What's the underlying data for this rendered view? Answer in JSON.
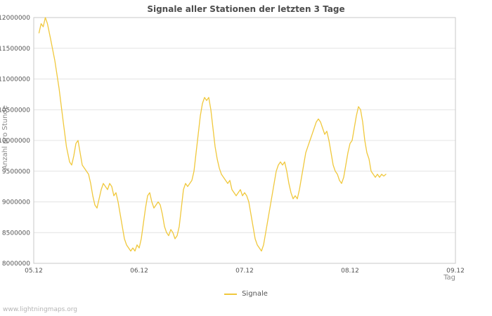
{
  "watermark": "www.lightningmaps.org",
  "chart_data": {
    "type": "line",
    "title": "Signale aller Stationen der letzten 3 Tage",
    "xlabel": "Tag",
    "ylabel": "Anzahl pro Stunde",
    "xlim": [
      5.0,
      9.0
    ],
    "ylim": [
      8.0,
      12.0
    ],
    "y_unit": "millions",
    "grid": "horizontal",
    "legend_position": "bottom-center",
    "colors": {
      "grid": "#e4e4e4",
      "border": "#c9c9c9"
    },
    "xticks": [
      {
        "value": 5.0,
        "label": "05.12"
      },
      {
        "value": 6.0,
        "label": "06.12"
      },
      {
        "value": 7.0,
        "label": "07.12"
      },
      {
        "value": 8.0,
        "label": "08.12"
      },
      {
        "value": 9.0,
        "label": "09.12"
      }
    ],
    "yticks": [
      {
        "value": 8.0,
        "label": "8000000"
      },
      {
        "value": 8.5,
        "label": "8500000"
      },
      {
        "value": 9.0,
        "label": "9000000"
      },
      {
        "value": 9.5,
        "label": "9500000"
      },
      {
        "value": 10.0,
        "label": "10000000"
      },
      {
        "value": 10.5,
        "label": "10500000"
      },
      {
        "value": 11.0,
        "label": "11000000"
      },
      {
        "value": 11.5,
        "label": "11500000"
      },
      {
        "value": 12.0,
        "label": "12000000"
      }
    ],
    "series": [
      {
        "name": "Signale",
        "color": "#f0c83c",
        "points": [
          [
            5.05,
            11.75
          ],
          [
            5.07,
            11.9
          ],
          [
            5.09,
            11.85
          ],
          [
            5.11,
            12.0
          ],
          [
            5.13,
            11.9
          ],
          [
            5.16,
            11.65
          ],
          [
            5.2,
            11.3
          ],
          [
            5.24,
            10.85
          ],
          [
            5.28,
            10.3
          ],
          [
            5.31,
            9.9
          ],
          [
            5.34,
            9.65
          ],
          [
            5.36,
            9.6
          ],
          [
            5.38,
            9.75
          ],
          [
            5.4,
            9.95
          ],
          [
            5.42,
            10.0
          ],
          [
            5.44,
            9.8
          ],
          [
            5.46,
            9.6
          ],
          [
            5.48,
            9.55
          ],
          [
            5.5,
            9.5
          ],
          [
            5.52,
            9.45
          ],
          [
            5.54,
            9.3
          ],
          [
            5.56,
            9.1
          ],
          [
            5.58,
            8.95
          ],
          [
            5.6,
            8.9
          ],
          [
            5.62,
            9.05
          ],
          [
            5.64,
            9.2
          ],
          [
            5.66,
            9.3
          ],
          [
            5.68,
            9.25
          ],
          [
            5.7,
            9.2
          ],
          [
            5.72,
            9.3
          ],
          [
            5.74,
            9.25
          ],
          [
            5.76,
            9.1
          ],
          [
            5.78,
            9.15
          ],
          [
            5.8,
            9.0
          ],
          [
            5.82,
            8.8
          ],
          [
            5.84,
            8.6
          ],
          [
            5.86,
            8.4
          ],
          [
            5.88,
            8.3
          ],
          [
            5.9,
            8.25
          ],
          [
            5.92,
            8.2
          ],
          [
            5.94,
            8.25
          ],
          [
            5.96,
            8.2
          ],
          [
            5.98,
            8.3
          ],
          [
            6.0,
            8.25
          ],
          [
            6.02,
            8.4
          ],
          [
            6.04,
            8.65
          ],
          [
            6.06,
            8.9
          ],
          [
            6.08,
            9.1
          ],
          [
            6.1,
            9.15
          ],
          [
            6.12,
            9.0
          ],
          [
            6.14,
            8.9
          ],
          [
            6.16,
            8.95
          ],
          [
            6.18,
            9.0
          ],
          [
            6.2,
            8.95
          ],
          [
            6.22,
            8.8
          ],
          [
            6.24,
            8.6
          ],
          [
            6.26,
            8.5
          ],
          [
            6.28,
            8.45
          ],
          [
            6.3,
            8.55
          ],
          [
            6.32,
            8.5
          ],
          [
            6.34,
            8.4
          ],
          [
            6.36,
            8.45
          ],
          [
            6.38,
            8.6
          ],
          [
            6.4,
            8.9
          ],
          [
            6.42,
            9.2
          ],
          [
            6.44,
            9.3
          ],
          [
            6.46,
            9.25
          ],
          [
            6.48,
            9.3
          ],
          [
            6.5,
            9.35
          ],
          [
            6.52,
            9.5
          ],
          [
            6.54,
            9.8
          ],
          [
            6.56,
            10.1
          ],
          [
            6.58,
            10.4
          ],
          [
            6.6,
            10.6
          ],
          [
            6.62,
            10.7
          ],
          [
            6.64,
            10.65
          ],
          [
            6.66,
            10.7
          ],
          [
            6.68,
            10.5
          ],
          [
            6.7,
            10.2
          ],
          [
            6.72,
            9.9
          ],
          [
            6.74,
            9.7
          ],
          [
            6.76,
            9.55
          ],
          [
            6.78,
            9.45
          ],
          [
            6.8,
            9.4
          ],
          [
            6.82,
            9.35
          ],
          [
            6.84,
            9.3
          ],
          [
            6.86,
            9.35
          ],
          [
            6.88,
            9.2
          ],
          [
            6.9,
            9.15
          ],
          [
            6.92,
            9.1
          ],
          [
            6.94,
            9.15
          ],
          [
            6.96,
            9.2
          ],
          [
            6.98,
            9.1
          ],
          [
            7.0,
            9.15
          ],
          [
            7.02,
            9.1
          ],
          [
            7.04,
            9.0
          ],
          [
            7.06,
            8.8
          ],
          [
            7.08,
            8.6
          ],
          [
            7.1,
            8.4
          ],
          [
            7.12,
            8.3
          ],
          [
            7.14,
            8.25
          ],
          [
            7.16,
            8.2
          ],
          [
            7.18,
            8.3
          ],
          [
            7.2,
            8.5
          ],
          [
            7.22,
            8.7
          ],
          [
            7.24,
            8.9
          ],
          [
            7.26,
            9.1
          ],
          [
            7.28,
            9.3
          ],
          [
            7.3,
            9.5
          ],
          [
            7.32,
            9.6
          ],
          [
            7.34,
            9.65
          ],
          [
            7.36,
            9.6
          ],
          [
            7.38,
            9.65
          ],
          [
            7.4,
            9.5
          ],
          [
            7.42,
            9.3
          ],
          [
            7.44,
            9.15
          ],
          [
            7.46,
            9.05
          ],
          [
            7.48,
            9.1
          ],
          [
            7.5,
            9.05
          ],
          [
            7.52,
            9.2
          ],
          [
            7.54,
            9.4
          ],
          [
            7.56,
            9.6
          ],
          [
            7.58,
            9.8
          ],
          [
            7.6,
            9.9
          ],
          [
            7.62,
            10.0
          ],
          [
            7.64,
            10.1
          ],
          [
            7.66,
            10.2
          ],
          [
            7.68,
            10.3
          ],
          [
            7.7,
            10.35
          ],
          [
            7.72,
            10.3
          ],
          [
            7.74,
            10.2
          ],
          [
            7.76,
            10.1
          ],
          [
            7.78,
            10.15
          ],
          [
            7.8,
            10.0
          ],
          [
            7.82,
            9.8
          ],
          [
            7.84,
            9.6
          ],
          [
            7.86,
            9.5
          ],
          [
            7.88,
            9.45
          ],
          [
            7.9,
            9.35
          ],
          [
            7.92,
            9.3
          ],
          [
            7.94,
            9.4
          ],
          [
            7.96,
            9.6
          ],
          [
            7.98,
            9.8
          ],
          [
            8.0,
            9.95
          ],
          [
            8.02,
            10.0
          ],
          [
            8.04,
            10.2
          ],
          [
            8.06,
            10.4
          ],
          [
            8.08,
            10.55
          ],
          [
            8.1,
            10.5
          ],
          [
            8.12,
            10.3
          ],
          [
            8.14,
            10.0
          ],
          [
            8.16,
            9.8
          ],
          [
            8.18,
            9.7
          ],
          [
            8.2,
            9.5
          ],
          [
            8.22,
            9.45
          ],
          [
            8.24,
            9.4
          ],
          [
            8.26,
            9.45
          ],
          [
            8.28,
            9.4
          ],
          [
            8.3,
            9.45
          ],
          [
            8.32,
            9.42
          ],
          [
            8.34,
            9.45
          ]
        ]
      }
    ]
  }
}
